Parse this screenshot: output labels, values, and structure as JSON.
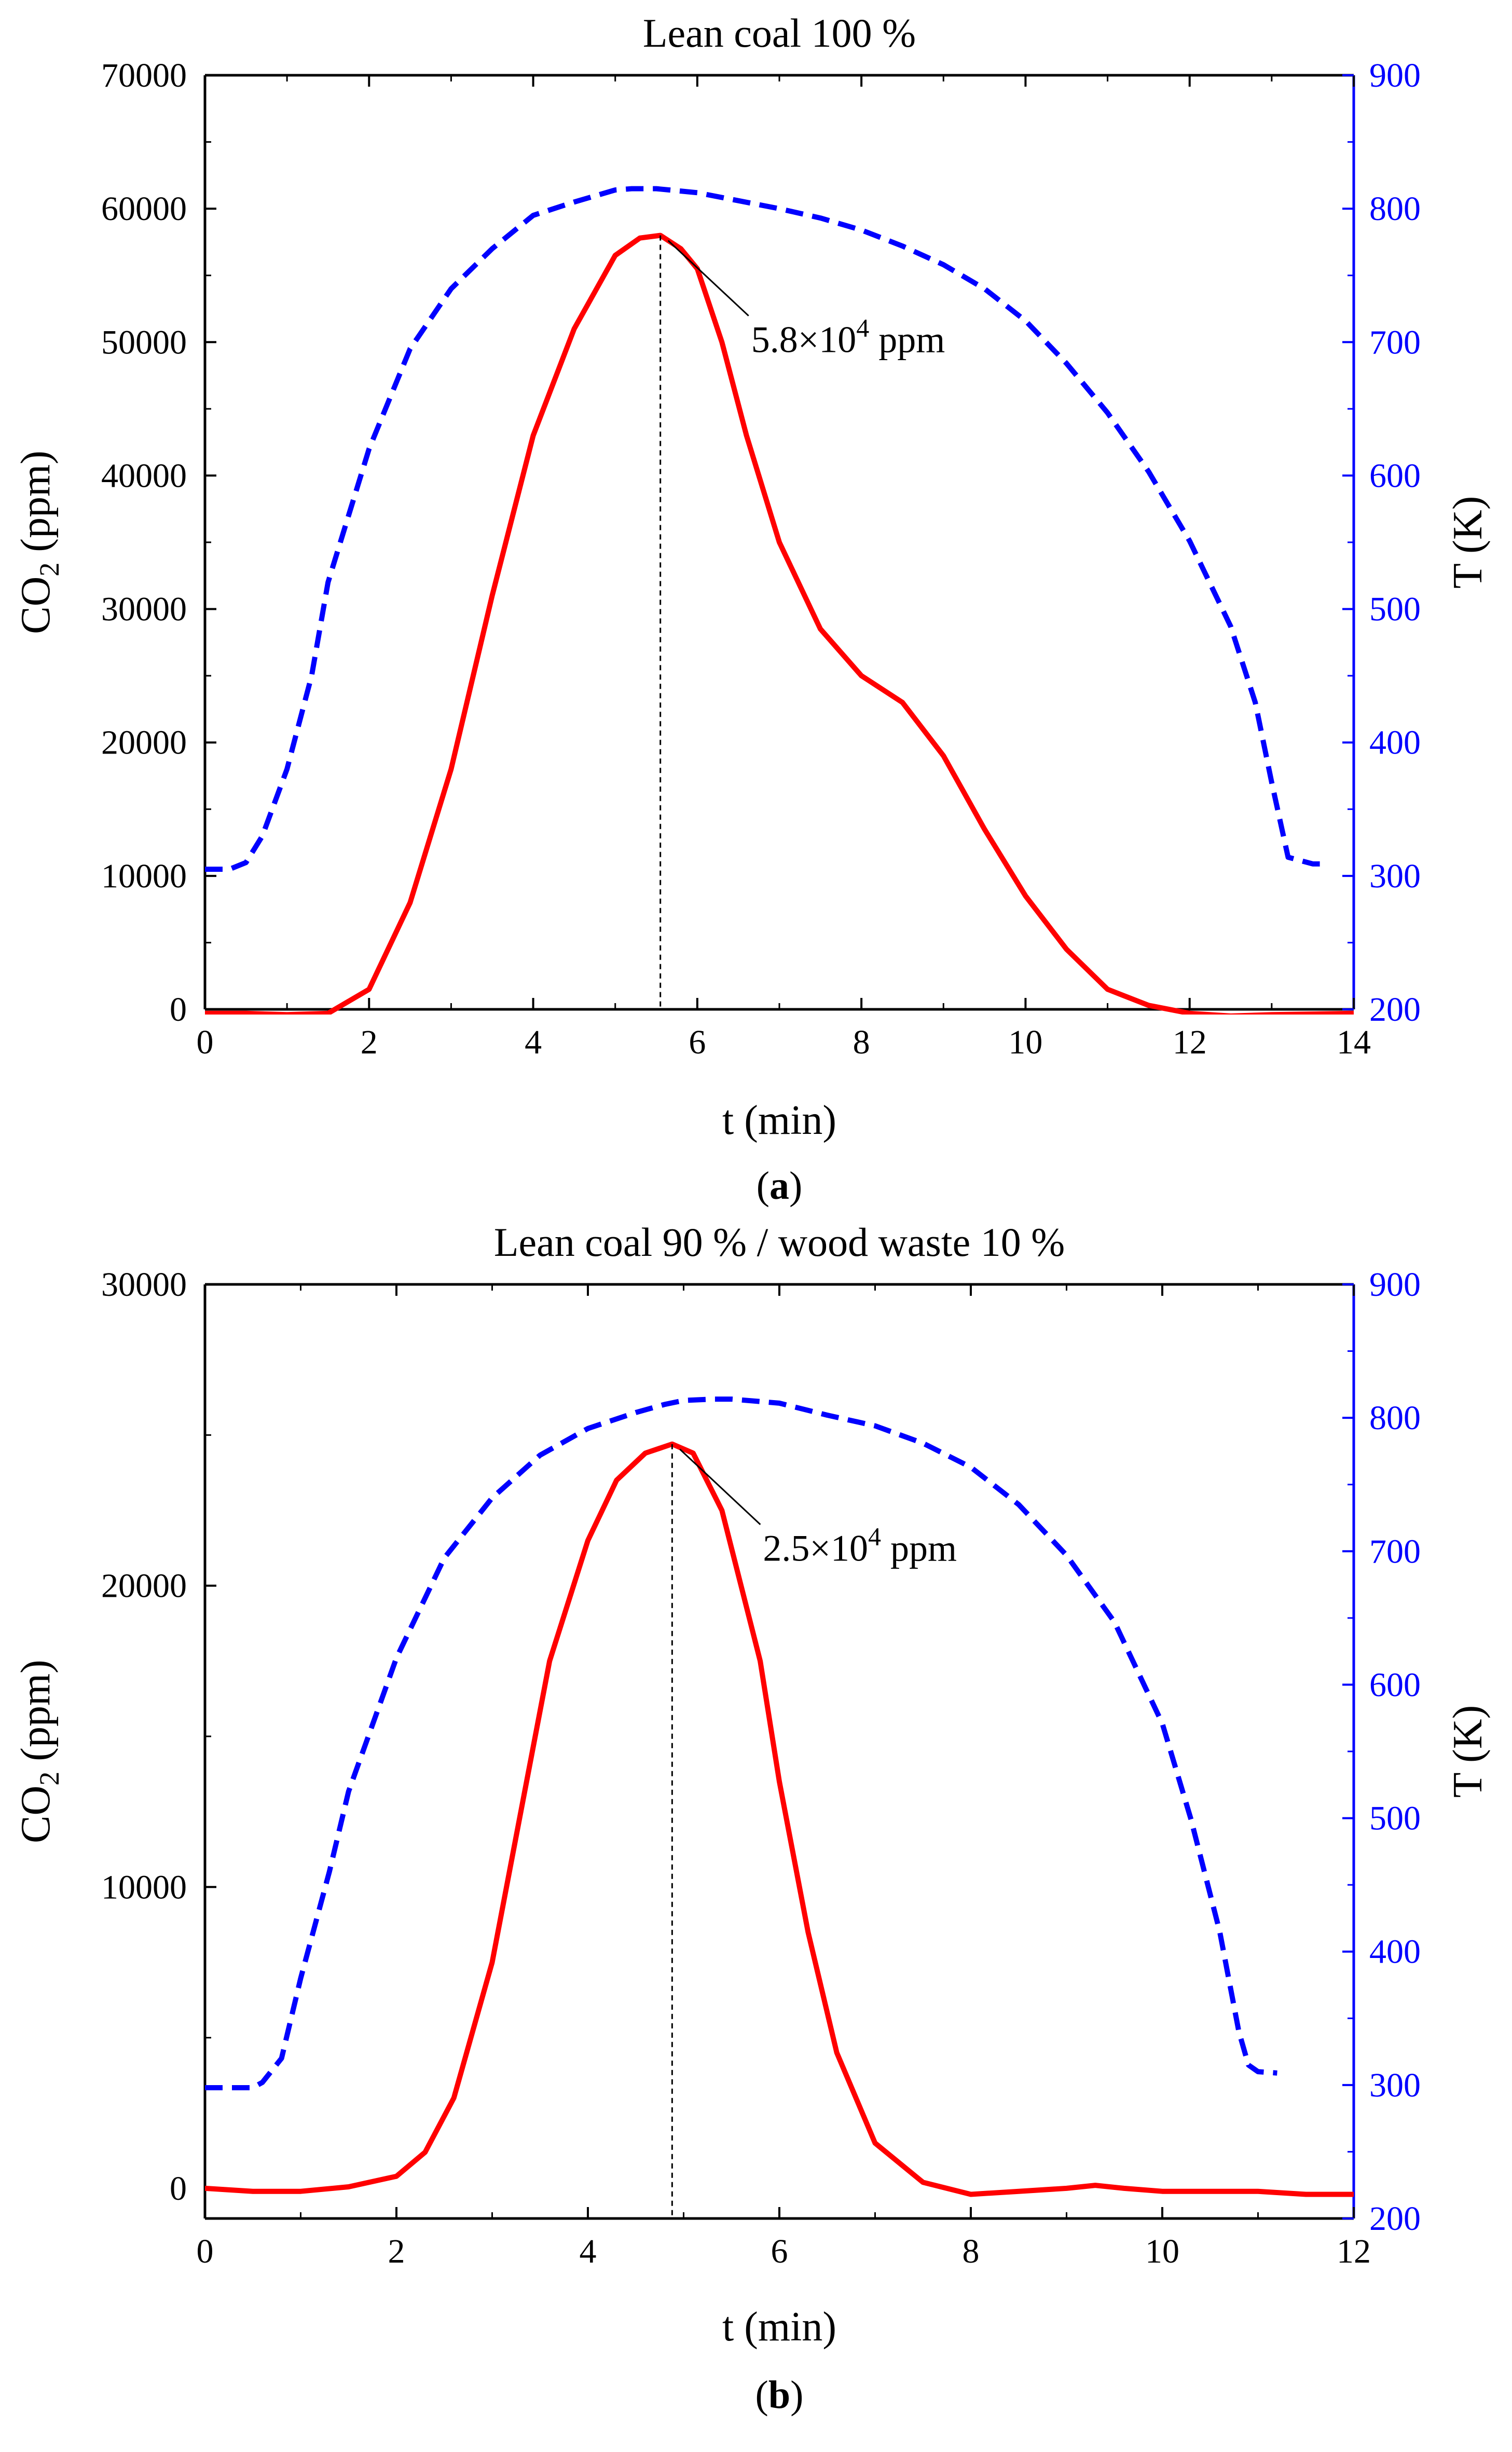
{
  "colors": {
    "co2": "#ff0000",
    "temperature": "#0000ff",
    "axis": "#000000",
    "marker": "#000000"
  },
  "chart_data": [
    {
      "type": "line",
      "title": "Lean coal 100 %",
      "xlabel": "t (min)",
      "ylabel_main": "CO",
      "ylabel_sub": "2",
      "ylabel_tail": " (ppm)",
      "ylabel_right": "T (K)",
      "xlim": [
        0,
        14
      ],
      "ylim_left": [
        0,
        70000
      ],
      "ylim_right": [
        200,
        900
      ],
      "xticks": [
        0,
        2,
        4,
        6,
        8,
        10,
        12,
        14
      ],
      "yticks_left": [
        0,
        10000,
        20000,
        30000,
        40000,
        50000,
        60000,
        70000
      ],
      "yticks_right": [
        200,
        300,
        400,
        500,
        600,
        700,
        800,
        900
      ],
      "panel_label": "a",
      "series": [
        {
          "name": "CO2",
          "axis": "left",
          "style": "solid",
          "x": [
            0,
            0.5,
            1.0,
            1.5,
            2.0,
            2.5,
            3.0,
            3.5,
            4.0,
            4.5,
            5.0,
            5.3,
            5.55,
            5.8,
            6.0,
            6.3,
            6.6,
            7.0,
            7.5,
            8.0,
            8.5,
            9.0,
            9.5,
            10.0,
            10.5,
            11.0,
            11.5,
            12.0,
            12.5,
            13.0,
            14.0
          ],
          "y": [
            -300,
            -300,
            -400,
            -300,
            1500,
            8000,
            18000,
            31000,
            43000,
            51000,
            56500,
            57800,
            58000,
            57000,
            55500,
            50000,
            43000,
            35000,
            28500,
            25000,
            23000,
            19000,
            13500,
            8500,
            4500,
            1500,
            300,
            -300,
            -500,
            -400,
            -300
          ]
        },
        {
          "name": "T",
          "axis": "right",
          "style": "dashed",
          "x": [
            0,
            0.3,
            0.5,
            0.7,
            1.0,
            1.3,
            1.5,
            2.0,
            2.5,
            3.0,
            3.5,
            4.0,
            4.5,
            5.0,
            5.2,
            5.5,
            6.0,
            6.5,
            7.0,
            7.5,
            8.0,
            8.5,
            9.0,
            9.5,
            10.0,
            10.5,
            11.0,
            11.5,
            12.0,
            12.5,
            12.8,
            13.0,
            13.2,
            13.5,
            13.7
          ],
          "y": [
            305,
            305,
            310,
            330,
            380,
            450,
            520,
            620,
            695,
            740,
            770,
            795,
            805,
            814,
            815,
            815,
            812,
            806,
            800,
            793,
            784,
            772,
            758,
            740,
            716,
            684,
            647,
            603,
            551,
            487,
            430,
            370,
            314,
            309,
            309
          ]
        }
      ],
      "annotations": [
        {
          "x": 5.55,
          "y": 58000,
          "text_main": "5.8×10",
          "text_sup": "4",
          "text_tail": " ppm"
        }
      ]
    },
    {
      "type": "line",
      "title": "Lean coal 90 % / wood waste 10 %",
      "xlabel": "t (min)",
      "ylabel_main": "CO",
      "ylabel_sub": "2",
      "ylabel_tail": " (ppm)",
      "ylabel_right": "T (K)",
      "xlim": [
        0,
        12
      ],
      "ylim_left": [
        -1000,
        30000
      ],
      "ylim_right": [
        200,
        900
      ],
      "xticks": [
        0,
        2,
        4,
        6,
        8,
        10,
        12
      ],
      "yticks_left": [
        0,
        10000,
        20000,
        30000
      ],
      "yticks_right": [
        200,
        300,
        400,
        500,
        600,
        700,
        800,
        900
      ],
      "panel_label": "b",
      "series": [
        {
          "name": "CO2",
          "axis": "left",
          "style": "solid",
          "x": [
            0,
            0.5,
            1.0,
            1.5,
            2.0,
            2.3,
            2.6,
            3.0,
            3.3,
            3.6,
            4.0,
            4.3,
            4.6,
            4.88,
            5.1,
            5.4,
            5.8,
            6.0,
            6.3,
            6.6,
            7.0,
            7.5,
            8.0,
            8.5,
            9.0,
            9.3,
            9.6,
            10.0,
            10.5,
            11.0,
            11.5,
            12.0
          ],
          "y": [
            0,
            -100,
            -100,
            50,
            400,
            1200,
            3000,
            7500,
            12500,
            17500,
            21500,
            23500,
            24400,
            24700,
            24400,
            22500,
            17500,
            13500,
            8500,
            4500,
            1500,
            200,
            -200,
            -100,
            0,
            100,
            0,
            -100,
            -100,
            -100,
            -200,
            -200
          ]
        },
        {
          "name": "T",
          "axis": "right",
          "style": "dashed",
          "x": [
            0,
            0.3,
            0.5,
            0.6,
            0.8,
            1.0,
            1.3,
            1.5,
            2.0,
            2.5,
            3.0,
            3.5,
            4.0,
            4.5,
            4.8,
            5.0,
            5.3,
            5.5,
            6.0,
            6.5,
            7.0,
            7.5,
            8.0,
            8.5,
            9.0,
            9.5,
            10.0,
            10.3,
            10.6,
            10.8,
            10.9,
            11.0,
            11.2
          ],
          "y": [
            298,
            298,
            298,
            302,
            320,
            380,
            460,
            520,
            620,
            695,
            740,
            772,
            792,
            804,
            810,
            813,
            814,
            814,
            811,
            802,
            794,
            781,
            763,
            735,
            697,
            647,
            571,
            499,
            415,
            340,
            315,
            310,
            309
          ]
        }
      ],
      "annotations": [
        {
          "x": 4.88,
          "y": 24700,
          "text_main": "2.5×10",
          "text_sup": "4",
          "text_tail": " ppm"
        }
      ]
    }
  ]
}
